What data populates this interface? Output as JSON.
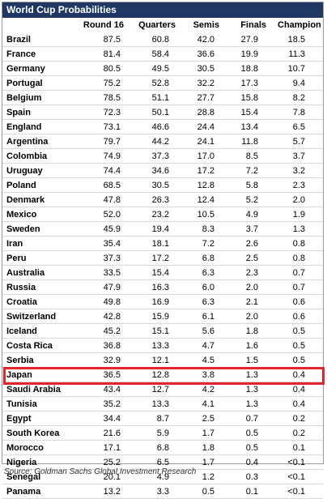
{
  "chart_data": {
    "type": "table",
    "title": "World Cup Probabilities",
    "columns": [
      "",
      "Round 16",
      "Quarters",
      "Semis",
      "Finals",
      "Champion"
    ],
    "rows": [
      {
        "team": "Brazil",
        "values": [
          "87.5",
          "60.8",
          "42.0",
          "27.9",
          "18.5"
        ]
      },
      {
        "team": "France",
        "values": [
          "81.4",
          "58.4",
          "36.6",
          "19.9",
          "11.3"
        ]
      },
      {
        "team": "Germany",
        "values": [
          "80.5",
          "49.5",
          "30.5",
          "18.8",
          "10.7"
        ]
      },
      {
        "team": "Portugal",
        "values": [
          "75.2",
          "52.8",
          "32.2",
          "17.3",
          "9.4"
        ]
      },
      {
        "team": "Belgium",
        "values": [
          "78.5",
          "51.1",
          "27.7",
          "15.8",
          "8.2"
        ]
      },
      {
        "team": "Spain",
        "values": [
          "72.3",
          "50.1",
          "28.8",
          "15.4",
          "7.8"
        ]
      },
      {
        "team": "England",
        "values": [
          "73.1",
          "46.6",
          "24.4",
          "13.4",
          "6.5"
        ]
      },
      {
        "team": "Argentina",
        "values": [
          "79.7",
          "44.2",
          "24.1",
          "11.8",
          "5.7"
        ]
      },
      {
        "team": "Colombia",
        "values": [
          "74.9",
          "37.3",
          "17.0",
          "8.5",
          "3.7"
        ]
      },
      {
        "team": "Uruguay",
        "values": [
          "74.4",
          "34.6",
          "17.2",
          "7.2",
          "3.2"
        ]
      },
      {
        "team": "Poland",
        "values": [
          "68.5",
          "30.5",
          "12.8",
          "5.8",
          "2.3"
        ]
      },
      {
        "team": "Denmark",
        "values": [
          "47.8",
          "26.3",
          "12.4",
          "5.2",
          "2.0"
        ]
      },
      {
        "team": "Mexico",
        "values": [
          "52.0",
          "23.2",
          "10.5",
          "4.9",
          "1.9"
        ]
      },
      {
        "team": "Sweden",
        "values": [
          "45.9",
          "19.4",
          "8.3",
          "3.7",
          "1.3"
        ]
      },
      {
        "team": "Iran",
        "values": [
          "35.4",
          "18.1",
          "7.2",
          "2.6",
          "0.8"
        ]
      },
      {
        "team": "Peru",
        "values": [
          "37.3",
          "17.2",
          "6.8",
          "2.5",
          "0.8"
        ]
      },
      {
        "team": "Australia",
        "values": [
          "33.5",
          "15.4",
          "6.3",
          "2.3",
          "0.7"
        ]
      },
      {
        "team": "Russia",
        "values": [
          "47.9",
          "16.3",
          "6.0",
          "2.0",
          "0.7"
        ]
      },
      {
        "team": "Croatia",
        "values": [
          "49.8",
          "16.9",
          "6.3",
          "2.1",
          "0.6"
        ]
      },
      {
        "team": "Switzerland",
        "values": [
          "42.8",
          "15.9",
          "6.1",
          "2.0",
          "0.6"
        ]
      },
      {
        "team": "Iceland",
        "values": [
          "45.2",
          "15.1",
          "5.6",
          "1.8",
          "0.5"
        ]
      },
      {
        "team": "Costa Rica",
        "values": [
          "36.8",
          "13.3",
          "4.7",
          "1.6",
          "0.5"
        ]
      },
      {
        "team": "Serbia",
        "values": [
          "32.9",
          "12.1",
          "4.5",
          "1.5",
          "0.5"
        ]
      },
      {
        "team": "Japan",
        "values": [
          "36.5",
          "12.8",
          "3.8",
          "1.3",
          "0.4"
        ]
      },
      {
        "team": "Saudi Arabia",
        "values": [
          "43.4",
          "12.7",
          "4.2",
          "1.3",
          "0.4"
        ]
      },
      {
        "team": "Tunisia",
        "values": [
          "35.2",
          "13.3",
          "4.1",
          "1.3",
          "0.4"
        ]
      },
      {
        "team": "Egypt",
        "values": [
          "34.4",
          "8.7",
          "2.5",
          "0.7",
          "0.2"
        ]
      },
      {
        "team": "South Korea",
        "values": [
          "21.6",
          "5.9",
          "1.7",
          "0.5",
          "0.2"
        ]
      },
      {
        "team": "Morocco",
        "values": [
          "17.1",
          "6.8",
          "1.8",
          "0.5",
          "0.1"
        ]
      },
      {
        "team": "Nigeria",
        "values": [
          "25.2",
          "6.5",
          "1.7",
          "0.4",
          "<0.1"
        ]
      },
      {
        "team": "Senegal",
        "values": [
          "20.1",
          "4.9",
          "1.2",
          "0.3",
          "<0.1"
        ]
      },
      {
        "team": "Panama",
        "values": [
          "13.2",
          "3.3",
          "0.5",
          "0.1",
          "<0.1"
        ]
      }
    ],
    "highlighted_team": "Japan",
    "highlight_color": "#e3242b",
    "header_color": "#1f3864"
  },
  "source": "Source: Goldman Sachs Global Investment Research"
}
